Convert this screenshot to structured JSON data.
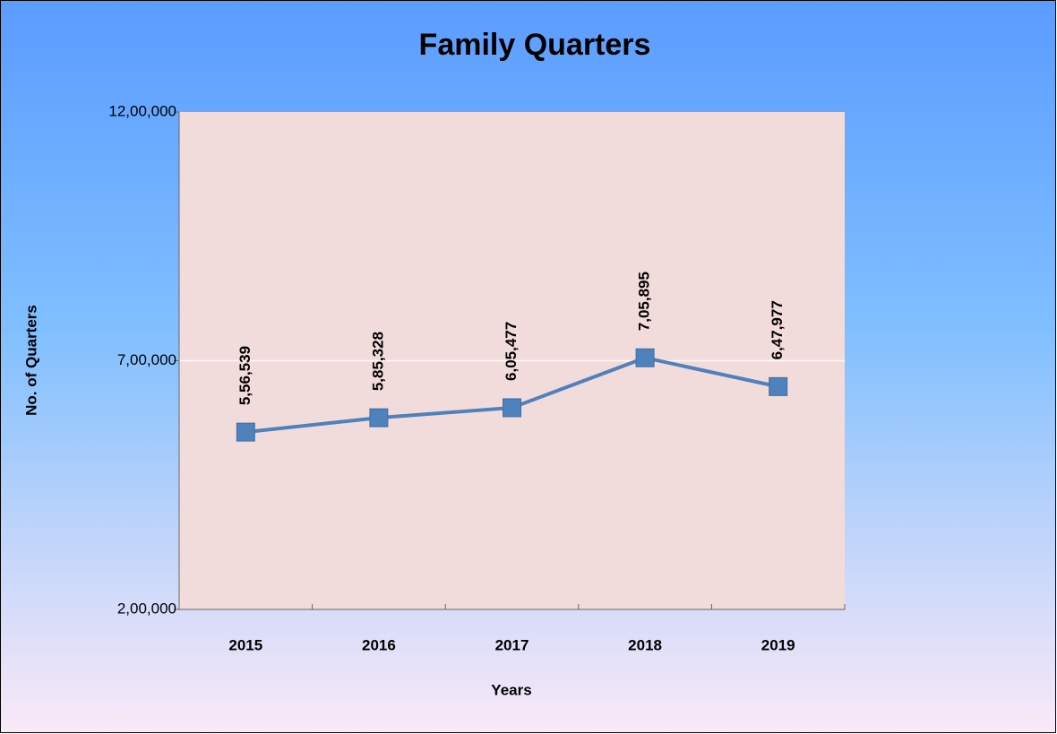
{
  "chart_data": {
    "type": "line",
    "title": "Family Quarters",
    "x_label": "Years",
    "y_label": "No. of Quarters",
    "categories": [
      "2015",
      "2016",
      "2017",
      "2018",
      "2019"
    ],
    "series": [
      {
        "name": "Family Quarters",
        "color": "#4f81bd",
        "values": [
          556539,
          585328,
          605477,
          705895,
          647977
        ],
        "value_labels": [
          "5,56,539",
          "5,85,328",
          "6,05,477",
          "7,05,895",
          "6,47,977"
        ]
      }
    ],
    "ylim": [
      200000,
      1200000
    ],
    "yticks": [
      {
        "value": 200000,
        "label": "2,00,000"
      },
      {
        "value": 700000,
        "label": "7,00,000"
      },
      {
        "value": 1200000,
        "label": "12,00,000"
      }
    ],
    "grid": true
  }
}
